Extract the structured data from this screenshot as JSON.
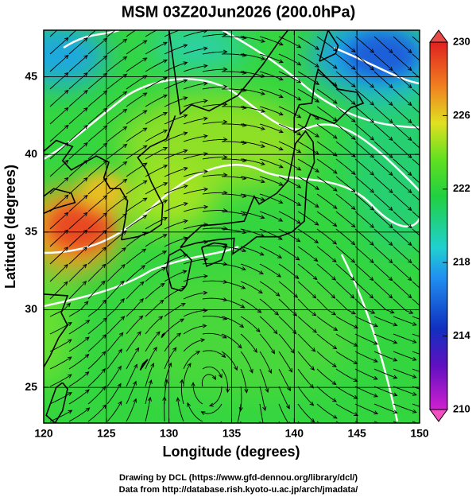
{
  "chart_data": {
    "type": "map",
    "title": "MSM 03Z20Jun2026 (200.0hPa)",
    "x_label": "Longitude (degrees)",
    "y_label": "Latitude  (degrees)",
    "xlim": [
      120,
      150
    ],
    "xticks": [
      120,
      125,
      130,
      135,
      140,
      145,
      150
    ],
    "ylim": [
      22.7,
      48
    ],
    "yticks": [
      25,
      30,
      35,
      40,
      45
    ],
    "grid": true,
    "colorbar": {
      "lim": [
        210,
        230
      ],
      "ticks": [
        210,
        214,
        218,
        222,
        226,
        230
      ]
    }
  },
  "footer": {
    "line1": "Drawing by DCL (https://www.gfd-dennou.org/library/dcl/)",
    "line2": "Data from http://database.rish.kyoto-u.ac.jp/arch/jmadata/"
  }
}
